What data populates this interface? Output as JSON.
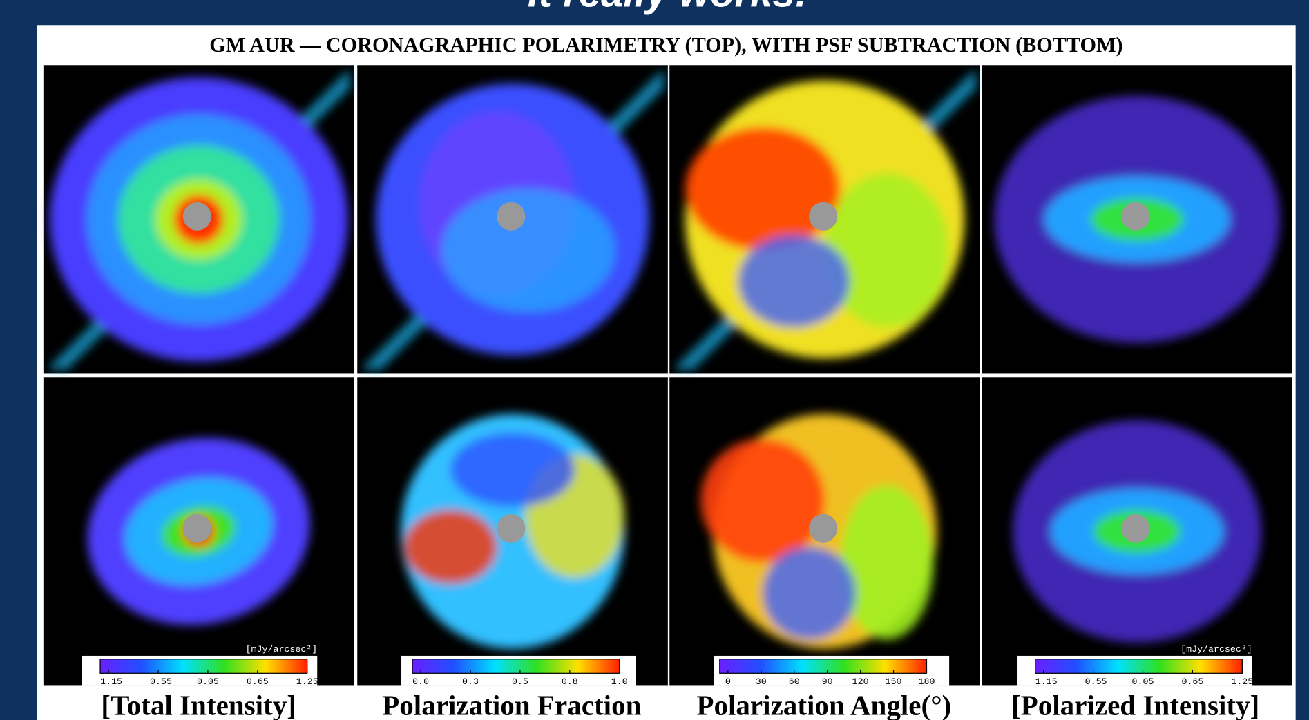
{
  "slide_title": "It really works!",
  "figure": {
    "caption": "GM AUR — CORONAGRAPHIC POLARIMETRY (TOP), WITH PSF SUBTRACTION (BOTTOM)",
    "colorbars": [
      {
        "ticks": [
          "−1.15",
          "−0.55",
          "0.05",
          "0.65",
          "1.25"
        ],
        "unit": "[mJy/arcsec²]"
      },
      {
        "ticks": [
          "0.0",
          "0.3",
          "0.5",
          "0.8",
          "1.0"
        ]
      },
      {
        "ticks": [
          "0",
          "30",
          "60",
          "90",
          "120",
          "150",
          "180"
        ]
      },
      {
        "ticks": [
          "−1.15",
          "−0.55",
          "0.05",
          "0.65",
          "1.25"
        ],
        "unit": "[mJy/arcsec²]"
      }
    ],
    "labels": [
      "[Total Intensity]",
      "Polarization Fraction",
      "Polarization Angle(°)",
      "[Polarized Intensity]"
    ]
  }
}
